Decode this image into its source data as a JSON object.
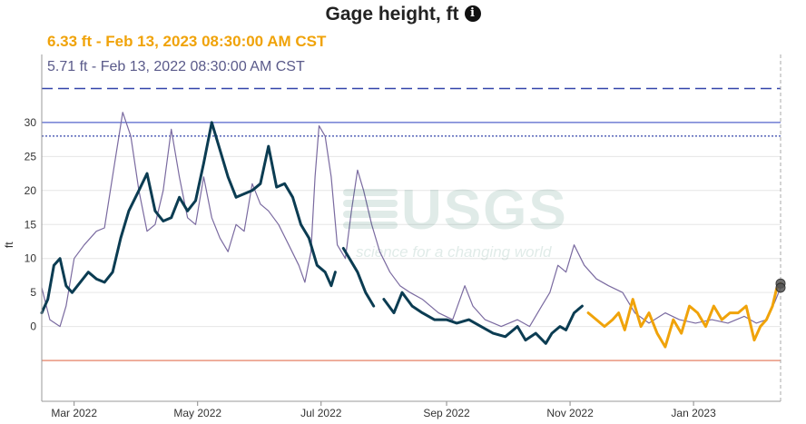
{
  "header": {
    "title": "Gage height, ft",
    "info_icon": "info-icon"
  },
  "labels": {
    "current": "6.33 ft - Feb 13, 2023 08:30:00 AM CST",
    "previous": "5.71 ft - Feb 13, 2022 08:30:00 AM CST"
  },
  "watermark": {
    "logo": "USGS",
    "tagline": "science for a changing world"
  },
  "colors": {
    "current_series": "#f0a30a",
    "previous_series": "#7a6aa0",
    "historical_series": "#0b3c52",
    "reference_solid": "#5566cc",
    "reference_dashed": "#3344aa",
    "low_line": "#e07050"
  },
  "chart_data": {
    "type": "line",
    "ylabel": "ft",
    "yticks": [
      0,
      5,
      10,
      15,
      20,
      25,
      30
    ],
    "ylim": [
      -11,
      40
    ],
    "xlim": [
      "2022-02-13",
      "2023-02-13"
    ],
    "xticks": [
      {
        "date": "2022-03-01",
        "label": "Mar 2022"
      },
      {
        "date": "2022-05-01",
        "label": "May 2022"
      },
      {
        "date": "2022-07-01",
        "label": "Jul 2022"
      },
      {
        "date": "2022-09-01",
        "label": "Sep 2022"
      },
      {
        "date": "2022-11-01",
        "label": "Nov 2022"
      },
      {
        "date": "2023-01-01",
        "label": "Jan 2023"
      }
    ],
    "reference_lines": [
      {
        "value": 35,
        "style": "long-dash"
      },
      {
        "value": 30,
        "style": "solid"
      },
      {
        "value": 28,
        "style": "dotted"
      },
      {
        "value": -5,
        "style": "solid-orange"
      }
    ],
    "series": [
      {
        "role": "previous_year",
        "points": [
          [
            "2022-02-13",
            5.7
          ],
          [
            "2022-02-17",
            1.0
          ],
          [
            "2022-02-22",
            0.0
          ],
          [
            "2022-02-25",
            3.0
          ],
          [
            "2022-03-01",
            10.0
          ],
          [
            "2022-03-06",
            12.0
          ],
          [
            "2022-03-12",
            14.0
          ],
          [
            "2022-03-16",
            14.5
          ],
          [
            "2022-03-21",
            24.0
          ],
          [
            "2022-03-25",
            31.5
          ],
          [
            "2022-03-29",
            28.0
          ],
          [
            "2022-04-02",
            20.0
          ],
          [
            "2022-04-06",
            14.0
          ],
          [
            "2022-04-10",
            15.0
          ],
          [
            "2022-04-14",
            20.0
          ],
          [
            "2022-04-18",
            29.0
          ],
          [
            "2022-04-22",
            22.0
          ],
          [
            "2022-04-26",
            16.0
          ],
          [
            "2022-04-30",
            15.0
          ],
          [
            "2022-05-04",
            22.0
          ],
          [
            "2022-05-08",
            16.0
          ],
          [
            "2022-05-12",
            13.0
          ],
          [
            "2022-05-16",
            11.0
          ],
          [
            "2022-05-20",
            15.0
          ],
          [
            "2022-05-24",
            14.0
          ],
          [
            "2022-05-28",
            21.0
          ],
          [
            "2022-06-01",
            18.0
          ],
          [
            "2022-06-05",
            17.0
          ],
          [
            "2022-06-10",
            15.0
          ],
          [
            "2022-06-15",
            12.0
          ],
          [
            "2022-06-20",
            9.0
          ],
          [
            "2022-06-23",
            6.5
          ],
          [
            "2022-06-26",
            11.0
          ],
          [
            "2022-06-28",
            22.0
          ],
          [
            "2022-06-30",
            29.5
          ],
          [
            "2022-07-03",
            28.0
          ],
          [
            "2022-07-06",
            22.0
          ],
          [
            "2022-07-09",
            12.0
          ],
          [
            "2022-07-13",
            10.0
          ],
          [
            "2022-07-16",
            17.0
          ],
          [
            "2022-07-19",
            23.0
          ],
          [
            "2022-07-22",
            20.0
          ],
          [
            "2022-07-26",
            15.0
          ],
          [
            "2022-07-30",
            11.0
          ],
          [
            "2022-08-04",
            8.0
          ],
          [
            "2022-08-09",
            6.0
          ],
          [
            "2022-08-14",
            5.0
          ],
          [
            "2022-08-20",
            4.0
          ],
          [
            "2022-08-28",
            2.0
          ],
          [
            "2022-09-04",
            1.0
          ],
          [
            "2022-09-10",
            6.0
          ],
          [
            "2022-09-14",
            3.0
          ],
          [
            "2022-09-20",
            1.0
          ],
          [
            "2022-09-28",
            0.0
          ],
          [
            "2022-10-06",
            1.0
          ],
          [
            "2022-10-12",
            0.0
          ],
          [
            "2022-10-18",
            3.0
          ],
          [
            "2022-10-22",
            5.0
          ],
          [
            "2022-10-26",
            9.0
          ],
          [
            "2022-10-30",
            8.0
          ],
          [
            "2022-11-03",
            12.0
          ],
          [
            "2022-11-08",
            9.0
          ],
          [
            "2022-11-14",
            7.0
          ],
          [
            "2022-11-20",
            6.0
          ],
          [
            "2022-11-27",
            5.0
          ],
          [
            "2022-12-03",
            2.0
          ],
          [
            "2022-12-10",
            0.5
          ],
          [
            "2022-12-18",
            2.0
          ],
          [
            "2022-12-25",
            1.0
          ],
          [
            "2023-01-02",
            0.5
          ],
          [
            "2023-01-10",
            1.0
          ],
          [
            "2023-01-18",
            0.5
          ],
          [
            "2023-01-26",
            1.5
          ],
          [
            "2023-02-01",
            0.5
          ],
          [
            "2023-02-06",
            1.0
          ],
          [
            "2023-02-10",
            3.5
          ],
          [
            "2023-02-13",
            5.7
          ]
        ]
      },
      {
        "role": "historical",
        "points": [
          [
            "2022-02-13",
            2.0
          ],
          [
            "2022-02-16",
            4.0
          ],
          [
            "2022-02-19",
            9.0
          ],
          [
            "2022-02-22",
            10.0
          ],
          [
            "2022-02-25",
            6.0
          ],
          [
            "2022-02-28",
            5.0
          ],
          [
            "2022-03-04",
            6.5
          ],
          [
            "2022-03-08",
            8.0
          ],
          [
            "2022-03-12",
            7.0
          ],
          [
            "2022-03-16",
            6.5
          ],
          [
            "2022-03-20",
            8.0
          ],
          [
            "2022-03-24",
            13.0
          ],
          [
            "2022-03-28",
            17.0
          ],
          [
            "2022-04-02",
            20.0
          ],
          [
            "2022-04-06",
            22.5
          ],
          [
            "2022-04-10",
            17.0
          ],
          [
            "2022-04-14",
            15.5
          ],
          [
            "2022-04-18",
            16.0
          ],
          [
            "2022-04-22",
            19.0
          ],
          [
            "2022-04-26",
            17.0
          ],
          [
            "2022-04-30",
            18.5
          ],
          [
            "2022-05-04",
            24.0
          ],
          [
            "2022-05-08",
            30.0
          ],
          [
            "2022-05-12",
            26.0
          ],
          [
            "2022-05-16",
            22.0
          ],
          [
            "2022-05-20",
            19.0
          ],
          [
            "2022-05-24",
            19.5
          ],
          [
            "2022-05-28",
            20.0
          ],
          [
            "2022-06-01",
            21.0
          ],
          [
            "2022-06-05",
            26.5
          ],
          [
            "2022-06-09",
            20.5
          ],
          [
            "2022-06-13",
            21.0
          ],
          [
            "2022-06-17",
            19.0
          ],
          [
            "2022-06-21",
            15.0
          ],
          [
            "2022-06-25",
            13.0
          ],
          [
            "2022-06-29",
            9.0
          ],
          [
            "2022-07-03",
            8.0
          ],
          [
            "2022-07-06",
            6.0
          ],
          [
            "2022-07-08",
            8.0
          ],
          [
            "GAP",
            0
          ],
          [
            "2022-07-12",
            11.5
          ],
          [
            "2022-07-15",
            10.0
          ],
          [
            "2022-07-19",
            8.0
          ],
          [
            "2022-07-23",
            5.0
          ],
          [
            "2022-07-27",
            3.0
          ],
          [
            "GAP",
            0
          ],
          [
            "2022-08-01",
            4.0
          ],
          [
            "2022-08-06",
            2.0
          ],
          [
            "2022-08-10",
            5.0
          ],
          [
            "2022-08-15",
            3.0
          ],
          [
            "2022-08-20",
            2.0
          ],
          [
            "2022-08-26",
            1.0
          ],
          [
            "2022-09-01",
            1.0
          ],
          [
            "2022-09-06",
            0.5
          ],
          [
            "2022-09-12",
            1.0
          ],
          [
            "2022-09-18",
            0.0
          ],
          [
            "2022-09-24",
            -1.0
          ],
          [
            "2022-09-30",
            -1.5
          ],
          [
            "2022-10-06",
            0.0
          ],
          [
            "2022-10-10",
            -2.0
          ],
          [
            "2022-10-15",
            -1.0
          ],
          [
            "2022-10-20",
            -2.5
          ],
          [
            "2022-10-23",
            -1.0
          ],
          [
            "2022-10-27",
            0.0
          ],
          [
            "2022-10-30",
            -0.5
          ],
          [
            "2022-11-03",
            2.0
          ],
          [
            "2022-11-07",
            3.0
          ]
        ]
      },
      {
        "role": "current",
        "points": [
          [
            "2022-11-10",
            2.0
          ],
          [
            "2022-11-14",
            1.0
          ],
          [
            "2022-11-18",
            0.0
          ],
          [
            "2022-11-22",
            1.0
          ],
          [
            "2022-11-25",
            2.0
          ],
          [
            "2022-11-28",
            -0.5
          ],
          [
            "2022-12-02",
            4.0
          ],
          [
            "2022-12-06",
            0.0
          ],
          [
            "2022-12-10",
            2.0
          ],
          [
            "2022-12-14",
            -1.0
          ],
          [
            "2022-12-18",
            -3.0
          ],
          [
            "2022-12-22",
            1.0
          ],
          [
            "2022-12-26",
            -1.0
          ],
          [
            "2022-12-30",
            3.0
          ],
          [
            "2023-01-03",
            2.0
          ],
          [
            "2023-01-07",
            0.0
          ],
          [
            "2023-01-11",
            3.0
          ],
          [
            "2023-01-15",
            1.0
          ],
          [
            "2023-01-19",
            2.0
          ],
          [
            "2023-01-23",
            2.0
          ],
          [
            "2023-01-27",
            3.0
          ],
          [
            "2023-01-31",
            -2.0
          ],
          [
            "2023-02-03",
            0.0
          ],
          [
            "2023-02-06",
            1.0
          ],
          [
            "2023-02-09",
            3.0
          ],
          [
            "2023-02-11",
            5.5
          ],
          [
            "2023-02-13",
            6.33
          ]
        ]
      }
    ],
    "markers": [
      {
        "date": "2023-02-13",
        "value": 6.33
      },
      {
        "date": "2023-02-13",
        "value": 5.71
      }
    ]
  }
}
